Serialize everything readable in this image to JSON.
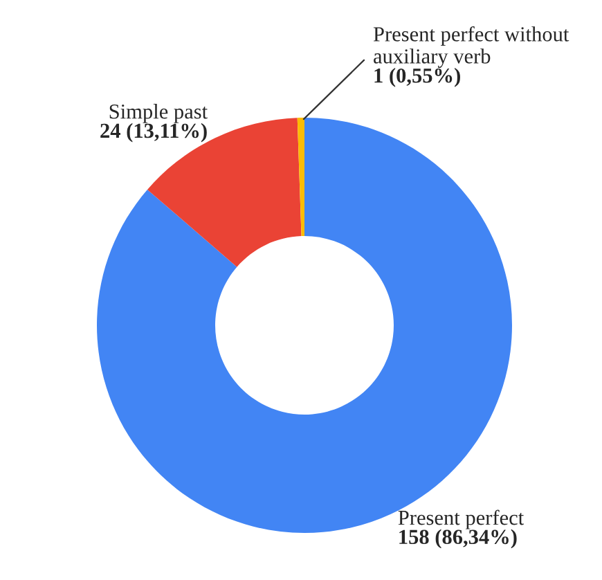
{
  "chart_data": {
    "type": "donut",
    "categories": [
      "Present perfect",
      "Simple past",
      "Present perfect without auxiliary verb"
    ],
    "values": [
      158,
      24,
      1
    ],
    "value_labels": [
      "158 (86,34%)",
      "24 (13,11%)",
      "1 (0,55%)"
    ],
    "colors": [
      "#4285f4",
      "#ea4335",
      "#fbbc04"
    ],
    "legend": false
  }
}
